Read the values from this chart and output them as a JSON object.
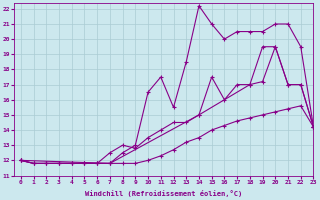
{
  "xlabel": "Windchill (Refroidissement éolien,°C)",
  "ylabel": "",
  "xlim": [
    -0.5,
    23
  ],
  "ylim": [
    11,
    22.4
  ],
  "yticks": [
    11,
    12,
    13,
    14,
    15,
    16,
    17,
    18,
    19,
    20,
    21,
    22
  ],
  "xticks": [
    0,
    1,
    2,
    3,
    4,
    5,
    6,
    7,
    8,
    9,
    10,
    11,
    12,
    13,
    14,
    15,
    16,
    17,
    18,
    19,
    20,
    21,
    22,
    23
  ],
  "bg_color": "#cce8ee",
  "grid_color": "#aaccd4",
  "line_color": "#880088",
  "series": [
    {
      "x": [
        0,
        1,
        2,
        3,
        4,
        5,
        6,
        7,
        8,
        9,
        10,
        11,
        12,
        13,
        14,
        15,
        16,
        17,
        18,
        19,
        20,
        21,
        22,
        23
      ],
      "y": [
        12,
        11.8,
        11.8,
        11.8,
        11.8,
        11.8,
        11.8,
        11.8,
        11.8,
        11.8,
        12.0,
        12.3,
        12.7,
        13.2,
        13.5,
        14.0,
        14.3,
        14.6,
        14.8,
        15.0,
        15.2,
        15.4,
        15.6,
        14.2
      ]
    },
    {
      "x": [
        0,
        1,
        2,
        3,
        4,
        5,
        6,
        7,
        8,
        9,
        10,
        11,
        12,
        13,
        14,
        15,
        16,
        17,
        18,
        19,
        20,
        21,
        22,
        23
      ],
      "y": [
        12,
        11.8,
        11.8,
        11.8,
        11.8,
        11.8,
        11.8,
        12.5,
        13.0,
        12.8,
        13.5,
        14.0,
        14.5,
        14.5,
        15.0,
        17.5,
        16.0,
        17.0,
        17.0,
        17.2,
        19.5,
        17.0,
        17.0,
        14.2
      ]
    },
    {
      "x": [
        0,
        1,
        2,
        3,
        4,
        5,
        6,
        7,
        8,
        9,
        10,
        11,
        12,
        13,
        14,
        15,
        16,
        17,
        18,
        19,
        20,
        21,
        22,
        23
      ],
      "y": [
        12,
        11.8,
        11.8,
        11.8,
        11.8,
        11.8,
        11.8,
        11.8,
        12.5,
        13.0,
        16.5,
        17.5,
        15.5,
        18.5,
        22.2,
        21.0,
        20.0,
        20.5,
        20.5,
        20.5,
        21.0,
        21.0,
        19.5,
        14.2
      ]
    },
    {
      "x": [
        0,
        7,
        14,
        18,
        19,
        20,
        21,
        22,
        23
      ],
      "y": [
        12,
        11.8,
        15.0,
        17.0,
        19.5,
        19.5,
        17.0,
        17.0,
        14.2
      ]
    }
  ]
}
